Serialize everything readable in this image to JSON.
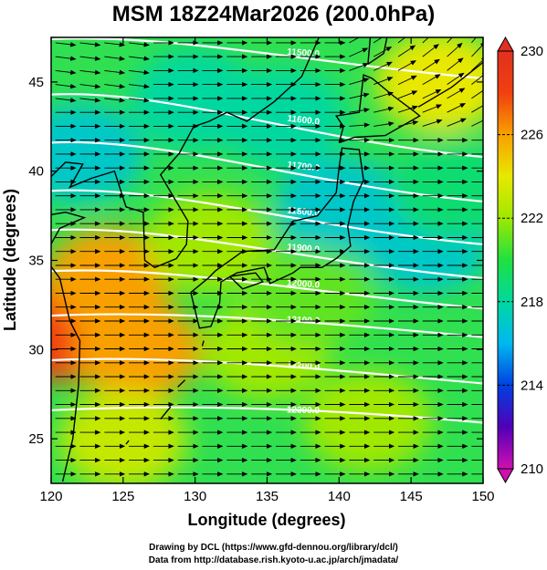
{
  "title": "MSM 18Z24Mar2026 (200.0hPa)",
  "credits": {
    "line1": "Drawing by DCL (https://www.gfd-dennou.org/library/dcl/)",
    "line2": "Data from http://database.rish.kyoto-u.ac.jp/arch/jmadata/"
  },
  "chart_data": {
    "type": "heatmap",
    "title": "MSM 18Z24Mar2026 (200.0hPa)",
    "xlabel": "Longitude (degrees)",
    "ylabel": "Latitude  (degrees)",
    "xlim": [
      120,
      150
    ],
    "ylim": [
      22.5,
      47.5
    ],
    "x_ticks": [
      120,
      125,
      130,
      135,
      140,
      145,
      150
    ],
    "y_ticks": [
      25,
      30,
      35,
      40,
      45
    ],
    "colorbar": {
      "min": 210,
      "max": 230,
      "ticks": [
        210,
        214,
        218,
        222,
        226,
        230
      ],
      "colors": [
        "#d010b0",
        "#5000b8",
        "#0040e0",
        "#00b8f0",
        "#00d8a0",
        "#20e040",
        "#a0e800",
        "#e8e800",
        "#f8a000",
        "#f04010",
        "#e03020"
      ]
    },
    "contours": [
      {
        "label": "11500.0",
        "lat_west": 47.4,
        "lat_east": 45.2
      },
      {
        "label": "11600.0",
        "lat_west": 44.3,
        "lat_east": 40.8
      },
      {
        "label": "11700.0",
        "lat_west": 41.6,
        "lat_east": 38.3
      },
      {
        "label": "11800.0",
        "lat_west": 38.9,
        "lat_east": 35.9
      },
      {
        "label": "11900.0",
        "lat_west": 36.7,
        "lat_east": 34.0
      },
      {
        "label": "12000.0",
        "lat_west": 34.4,
        "lat_east": 32.3
      },
      {
        "label": "12100.0",
        "lat_west": 31.9,
        "lat_east": 30.7
      },
      {
        "label": "12200.0",
        "lat_west": 29.4,
        "lat_east": 28.1
      },
      {
        "label": "12300.0",
        "lat_west": 26.6,
        "lat_east": 25.9
      }
    ],
    "contour_visible_labels": [
      "11500.0",
      "11600.0",
      "11700.0",
      "11800.0",
      "11900.0",
      "12000.0",
      "12100.0",
      "12200.0",
      "12300.0"
    ],
    "temperature_samples": [
      {
        "lon": 121,
        "lat": 31,
        "t": 228
      },
      {
        "lon": 124,
        "lat": 34,
        "t": 226
      },
      {
        "lon": 126,
        "lat": 30,
        "t": 226
      },
      {
        "lon": 122,
        "lat": 41,
        "t": 217
      },
      {
        "lon": 130,
        "lat": 44,
        "t": 218
      },
      {
        "lon": 136,
        "lat": 43,
        "t": 218
      },
      {
        "lon": 140,
        "lat": 38,
        "t": 217
      },
      {
        "lon": 146,
        "lat": 36,
        "t": 217
      },
      {
        "lon": 148,
        "lat": 39,
        "t": 219
      },
      {
        "lon": 147,
        "lat": 45,
        "t": 224
      },
      {
        "lon": 131,
        "lat": 36,
        "t": 222
      },
      {
        "lon": 135,
        "lat": 30,
        "t": 222
      },
      {
        "lon": 142,
        "lat": 26,
        "t": 222
      },
      {
        "lon": 125,
        "lat": 25,
        "t": 223
      },
      {
        "lon": 138,
        "lat": 33,
        "t": 221
      }
    ],
    "wind": "westerly vectors across entire domain, northeastward tilt in northeast corner",
    "grid": false
  }
}
